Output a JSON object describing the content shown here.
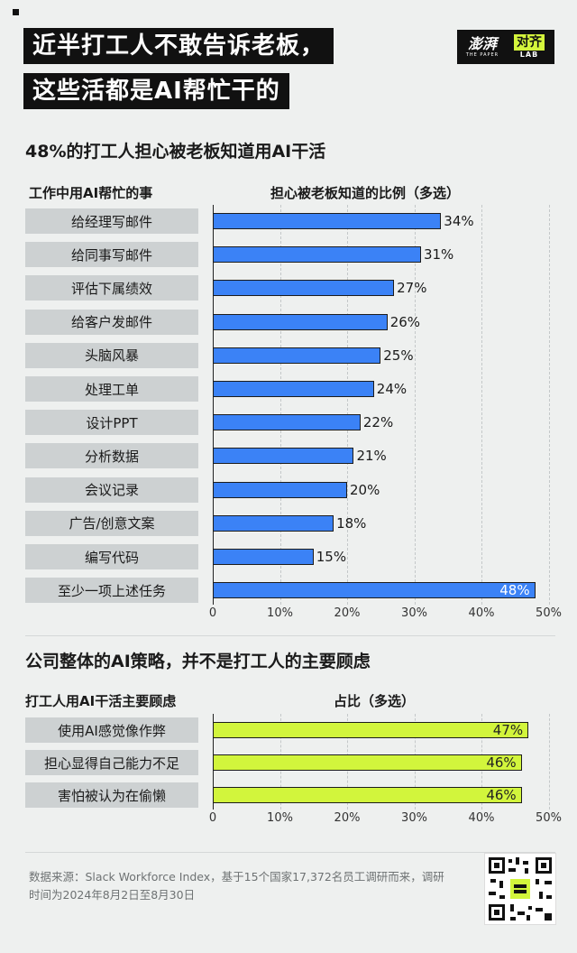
{
  "header": {
    "title_line1": "近半打工人不敢告诉老板，",
    "title_line2": "这些活都是AI帮忙干的",
    "logo_cn": "澎湃",
    "logo_en": "THE PAPER",
    "lab_cn": "对齐",
    "lab_en": "LAB"
  },
  "colors": {
    "bar_blue": "#3b82f6",
    "bar_lime": "#d2f53c",
    "background": "#eef0ef",
    "label_box": "#cdd1d2"
  },
  "chart_data": [
    {
      "type": "bar",
      "orientation": "horizontal",
      "title": "48%的打工人担心被老板知道用AI干活",
      "category_header": "工作中用AI帮忙的事",
      "value_header": "担心被老板知道的比例（多选）",
      "categories": [
        "给经理写邮件",
        "给同事写邮件",
        "评估下属绩效",
        "给客户发邮件",
        "头脑风暴",
        "处理工单",
        "设计PPT",
        "分析数据",
        "会议记录",
        "广告/创意文案",
        "编写代码",
        "至少一项上述任务"
      ],
      "values": [
        34,
        31,
        27,
        26,
        25,
        24,
        22,
        21,
        20,
        18,
        15,
        48
      ],
      "value_labels": [
        "34%",
        "31%",
        "27%",
        "26%",
        "25%",
        "24%",
        "22%",
        "21%",
        "20%",
        "18%",
        "15%",
        "48%"
      ],
      "xlim": [
        0,
        50
      ],
      "xticks": [
        "0",
        "10%",
        "20%",
        "30%",
        "40%",
        "50%"
      ],
      "grid": true
    },
    {
      "type": "bar",
      "orientation": "horizontal",
      "title": "公司整体的AI策略，并不是打工人的主要顾虑",
      "category_header": "打工人用AI干活主要顾虑",
      "value_header": "占比（多选）",
      "categories": [
        "使用AI感觉像作弊",
        "担心显得自己能力不足",
        "害怕被认为在偷懒"
      ],
      "values": [
        47,
        46,
        46
      ],
      "value_labels": [
        "47%",
        "46%",
        "46%"
      ],
      "xlim": [
        0,
        50
      ],
      "xticks": [
        "0",
        "10%",
        "20%",
        "30%",
        "40%",
        "50%"
      ],
      "grid": true
    }
  ],
  "footer": {
    "source": "数据来源：Slack Workforce Index，基于15个国家17,372名员工调研而来，调研时间为2024年8月2日至8月30日"
  }
}
